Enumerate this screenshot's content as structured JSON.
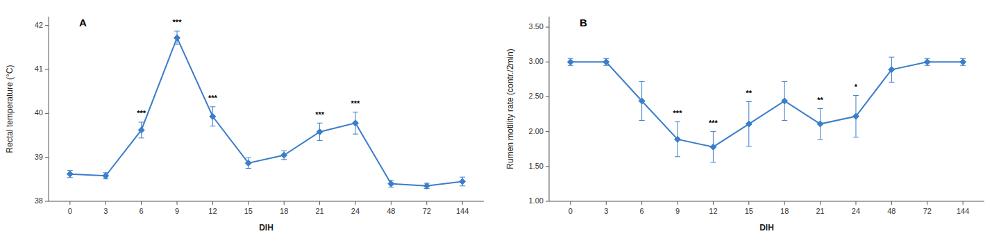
{
  "chart_data": [
    {
      "type": "line",
      "title": "A",
      "x_label": "DIH",
      "y_label": "Rectal temperature (°C)",
      "categories": [
        "0",
        "3",
        "6",
        "9",
        "12",
        "15",
        "18",
        "21",
        "24",
        "48",
        "72",
        "144"
      ],
      "series": [
        {
          "color": "#3A7DC9",
          "marker": "diamond",
          "line_style": "solid",
          "values": [
            38.62,
            38.58,
            39.62,
            41.72,
            39.93,
            38.87,
            39.05,
            39.58,
            39.78,
            38.4,
            38.35,
            38.45
          ],
          "errors": [
            0.08,
            0.07,
            0.18,
            0.15,
            0.22,
            0.12,
            0.1,
            0.2,
            0.25,
            0.08,
            0.06,
            0.1
          ]
        }
      ],
      "annotations": [
        {
          "category": "6",
          "text": "***"
        },
        {
          "category": "9",
          "text": "***"
        },
        {
          "category": "12",
          "text": "***"
        },
        {
          "category": "21",
          "text": "***"
        },
        {
          "category": "24",
          "text": "***"
        }
      ],
      "ylim": [
        38.0,
        42.2
      ],
      "yticks": [
        38,
        39,
        40,
        41,
        42
      ],
      "grid": false
    },
    {
      "type": "line",
      "title": "B",
      "x_label": "DIH",
      "y_label": "Rumen motility rate (contr./2min)",
      "categories": [
        "0",
        "3",
        "6",
        "9",
        "12",
        "15",
        "18",
        "21",
        "24",
        "48",
        "72",
        "144"
      ],
      "series": [
        {
          "color": "#3A7DC9",
          "marker": "diamond",
          "line_style": "solid",
          "values": [
            3.0,
            3.0,
            2.44,
            1.89,
            1.78,
            2.11,
            2.44,
            2.11,
            2.22,
            2.89,
            3.0,
            3.0
          ],
          "errors": [
            0.05,
            0.05,
            0.28,
            0.25,
            0.22,
            0.32,
            0.28,
            0.22,
            0.3,
            0.18,
            0.05,
            0.05
          ]
        }
      ],
      "annotations": [
        {
          "category": "9",
          "text": "***"
        },
        {
          "category": "12",
          "text": "***"
        },
        {
          "category": "15",
          "text": "**"
        },
        {
          "category": "21",
          "text": "**"
        },
        {
          "category": "24",
          "text": "*"
        }
      ],
      "ylim": [
        1.0,
        3.65
      ],
      "yticks": [
        {
          "value": 1.0,
          "label": "1.00"
        },
        {
          "value": 1.5,
          "label": "1.50"
        },
        {
          "value": 2.0,
          "label": "2.00"
        },
        {
          "value": 2.5,
          "label": "2.50"
        },
        {
          "value": 3.0,
          "label": "3.00"
        },
        {
          "value": 3.5,
          "label": "3.50"
        }
      ],
      "grid": false
    }
  ]
}
